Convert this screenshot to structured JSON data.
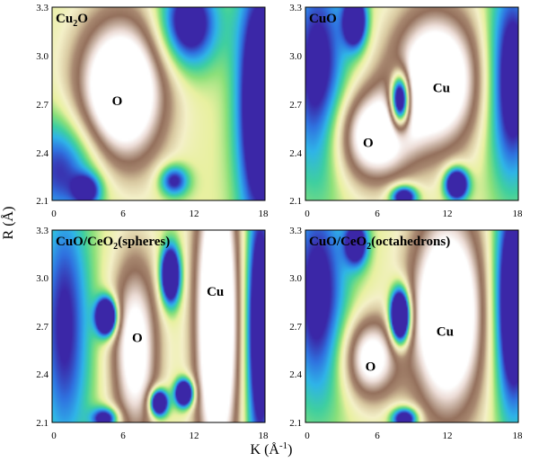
{
  "chart_data": {
    "type": "heatmap",
    "figure": "Wavelet transform contour maps (K vs R)",
    "xlabel": "K (Å",
    "xlabel_sup": "-1",
    "xlabel_close": ")",
    "ylabel": "R (Å)",
    "colorscale": [
      "#3b27a7",
      "#2f73e0",
      "#2fb4e8",
      "#3fcfa0",
      "#8be07a",
      "#e8f0a0",
      "#f4f0c8",
      "#d8c8a0",
      "#a88870",
      "#94705c",
      "#c0a898",
      "#ecdcd6",
      "#ffffff"
    ],
    "panels": [
      {
        "title_main": "Cu",
        "title_sub": "2",
        "title_rest": "O",
        "xlim": [
          0,
          18
        ],
        "ylim": [
          2.1,
          3.3
        ],
        "xticks": [
          "0",
          "6",
          "12",
          "18"
        ],
        "yticks": [
          "2.1",
          "2.4",
          "2.7",
          "3.0",
          "3.3"
        ],
        "annotations": [
          {
            "text": "O",
            "k": 5.5,
            "r": 2.72
          }
        ],
        "features": [
          {
            "k": 5.8,
            "r": 2.78,
            "sk": 2.6,
            "sr": 0.32,
            "h": 1.0
          },
          {
            "k": 1.0,
            "r": 2.3,
            "sk": 2.5,
            "sr": 0.25,
            "h": -0.45
          },
          {
            "k": 10.3,
            "r": 2.22,
            "sk": 0.9,
            "sr": 0.07,
            "h": -0.5
          },
          {
            "k": 3.0,
            "r": 2.16,
            "sk": 0.8,
            "sr": 0.07,
            "h": -0.4
          },
          {
            "k": 11.5,
            "r": 3.2,
            "sk": 1.8,
            "sr": 0.2,
            "h": -0.6
          },
          {
            "k": 17.6,
            "r": 2.7,
            "sk": 1.4,
            "sr": 0.6,
            "h": -0.7
          }
        ]
      },
      {
        "title_main": "CuO",
        "title_sub": "",
        "title_rest": "",
        "xlim": [
          0,
          18
        ],
        "ylim": [
          2.1,
          3.3
        ],
        "xticks": [
          "0",
          "6",
          "12",
          "18"
        ],
        "yticks": [
          "2.1",
          "2.4",
          "2.7",
          "3.0",
          "3.3"
        ],
        "annotations": [
          {
            "text": "O",
            "k": 5.3,
            "r": 2.46
          },
          {
            "text": "Cu",
            "k": 11.5,
            "r": 2.8
          }
        ],
        "features": [
          {
            "k": 5.8,
            "r": 2.5,
            "sk": 2.2,
            "sr": 0.2,
            "h": 0.78
          },
          {
            "k": 11.0,
            "r": 2.85,
            "sk": 2.6,
            "sr": 0.3,
            "h": 0.95
          },
          {
            "k": 8.0,
            "r": 2.72,
            "sk": 0.6,
            "sr": 0.12,
            "h": -1.3
          },
          {
            "k": 12.8,
            "r": 2.2,
            "sk": 0.7,
            "sr": 0.07,
            "h": -0.9
          },
          {
            "k": 8.3,
            "r": 2.12,
            "sk": 0.8,
            "sr": 0.05,
            "h": -0.7
          },
          {
            "k": 4.2,
            "r": 3.22,
            "sk": 0.7,
            "sr": 0.12,
            "h": -0.7
          },
          {
            "k": 1.0,
            "r": 2.9,
            "sk": 1.8,
            "sr": 0.5,
            "h": -0.5
          },
          {
            "k": 17.5,
            "r": 2.85,
            "sk": 1.5,
            "sr": 0.45,
            "h": -0.6
          }
        ]
      },
      {
        "title_main": "CuO/CeO",
        "title_sub": "2",
        "title_rest": "(spheres)",
        "xlim": [
          0,
          18
        ],
        "ylim": [
          2.1,
          3.3
        ],
        "xticks": [
          "0",
          "6",
          "12",
          "18"
        ],
        "yticks": [
          "2.1",
          "2.4",
          "2.7",
          "3.0",
          "3.3"
        ],
        "annotations": [
          {
            "text": "O",
            "k": 7.2,
            "r": 2.63
          },
          {
            "text": "Cu",
            "k": 13.8,
            "r": 2.92
          }
        ],
        "features": [
          {
            "k": 14.0,
            "r": 2.75,
            "sk": 1.3,
            "sr": 0.7,
            "h": 1.05
          },
          {
            "k": 7.0,
            "r": 2.55,
            "sk": 1.4,
            "sr": 0.4,
            "h": 0.72
          },
          {
            "k": 4.6,
            "r": 2.76,
            "sk": 0.6,
            "sr": 0.08,
            "h": -1.2
          },
          {
            "k": 9.0,
            "r": 2.22,
            "sk": 0.55,
            "sr": 0.06,
            "h": -1.0
          },
          {
            "k": 11.2,
            "r": 2.28,
            "sk": 0.55,
            "sr": 0.06,
            "h": -1.0
          },
          {
            "k": 10.0,
            "r": 3.02,
            "sk": 0.6,
            "sr": 0.13,
            "h": -0.9
          },
          {
            "k": 4.5,
            "r": 2.12,
            "sk": 0.8,
            "sr": 0.05,
            "h": -0.6
          },
          {
            "k": 1.0,
            "r": 2.7,
            "sk": 1.6,
            "sr": 0.6,
            "h": -0.45
          },
          {
            "k": 17.6,
            "r": 2.7,
            "sk": 0.9,
            "sr": 0.6,
            "h": -0.7
          }
        ]
      },
      {
        "title_main": "CuO/CeO",
        "title_sub": "2",
        "title_rest": "(octahedrons)",
        "xlim": [
          0,
          18
        ],
        "ylim": [
          2.1,
          3.3
        ],
        "xticks": [
          "0",
          "6",
          "12",
          "18"
        ],
        "yticks": [
          "2.1",
          "2.4",
          "2.7",
          "3.0",
          "3.3"
        ],
        "annotations": [
          {
            "text": "O",
            "k": 5.5,
            "r": 2.45
          },
          {
            "text": "Cu",
            "k": 11.8,
            "r": 2.67
          }
        ],
        "features": [
          {
            "k": 12.0,
            "r": 2.78,
            "sk": 2.2,
            "sr": 0.45,
            "h": 1.0
          },
          {
            "k": 5.5,
            "r": 2.5,
            "sk": 1.6,
            "sr": 0.18,
            "h": 0.7
          },
          {
            "k": 8.0,
            "r": 2.76,
            "sk": 0.6,
            "sr": 0.12,
            "h": -1.3
          },
          {
            "k": 8.4,
            "r": 2.12,
            "sk": 0.8,
            "sr": 0.05,
            "h": -0.7
          },
          {
            "k": 4.3,
            "r": 3.22,
            "sk": 0.7,
            "sr": 0.1,
            "h": -0.6
          },
          {
            "k": 1.0,
            "r": 2.9,
            "sk": 1.8,
            "sr": 0.5,
            "h": -0.5
          },
          {
            "k": 17.6,
            "r": 2.85,
            "sk": 1.2,
            "sr": 0.5,
            "h": -0.75
          }
        ]
      }
    ]
  }
}
